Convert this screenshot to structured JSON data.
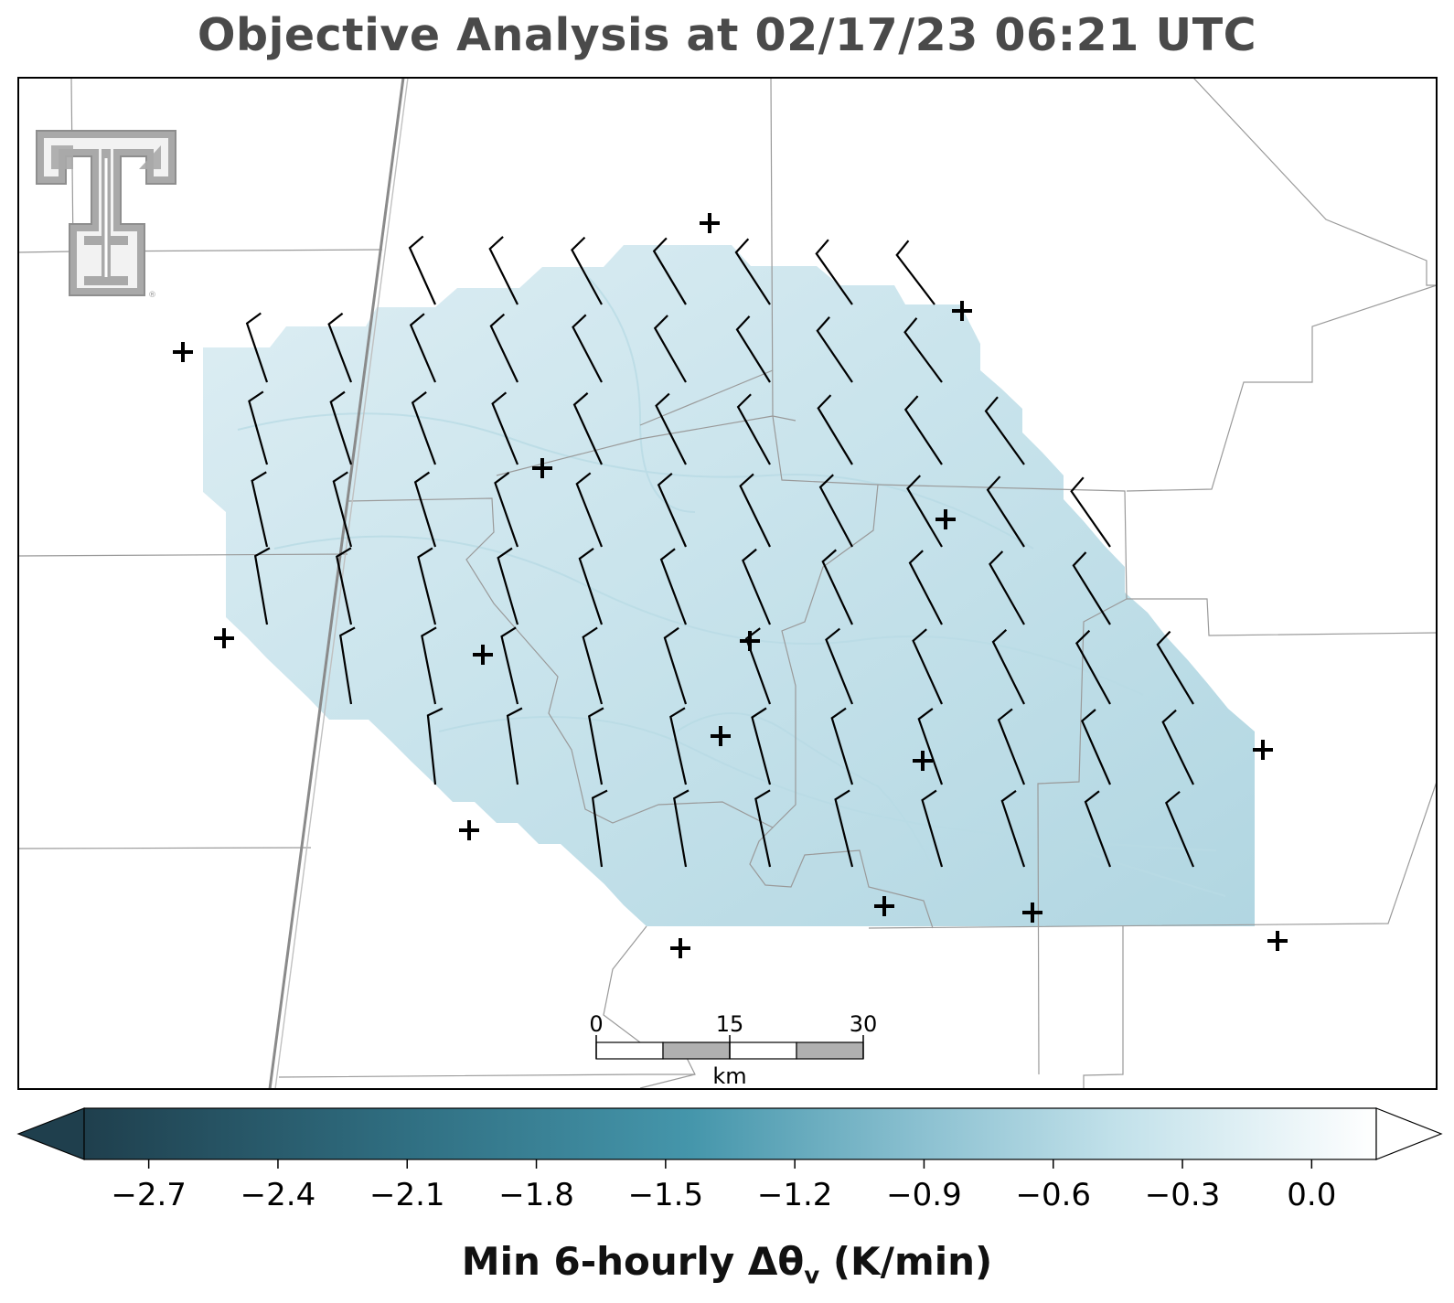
{
  "title": "Objective Analysis at 02/17/23 06:21 UTC",
  "colorbar": {
    "label_main": "Min 6-hourly Δθ",
    "label_sub": "v",
    "label_tail": " (K/min)",
    "ticks": [
      "−2.7",
      "−2.4",
      "−2.1",
      "−1.8",
      "−1.5",
      "−1.2",
      "−0.9",
      "−0.6",
      "−0.3",
      "0.0"
    ],
    "range": [
      -2.85,
      0.15
    ],
    "extend": "both",
    "colors": {
      "dark": "#1f3f4d",
      "mid": "#4596ab",
      "light": "#c2e1ea",
      "white": "#ffffff"
    }
  },
  "scale_bar": {
    "labels": [
      "0",
      "15",
      "30"
    ],
    "unit": "km"
  },
  "analysis_fill_color": "#c5e2eb",
  "logo": "texas-tech-double-t-logo",
  "symbols": {
    "station": "plus-marker",
    "wind": "wind-barb"
  }
}
